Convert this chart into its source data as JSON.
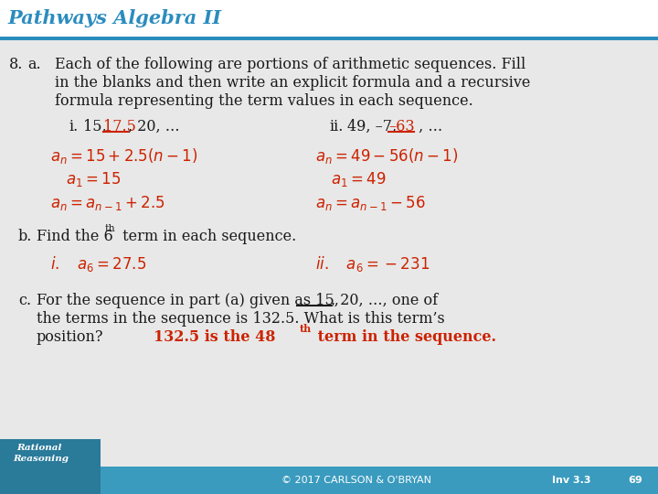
{
  "title": "Pathways Algebra II",
  "title_color": "#2b8cbe",
  "bg_white": "#ffffff",
  "bg_main": "#e8e8e8",
  "header_line_color": "#2b8cbe",
  "footer_color": "#3a9bbf",
  "black": "#1a1a1a",
  "red": "#cc2200",
  "footer_text": "© 2017 CARLSON & O'BRYAN",
  "footer_right1": "Inv 3.3",
  "footer_right2": "69"
}
